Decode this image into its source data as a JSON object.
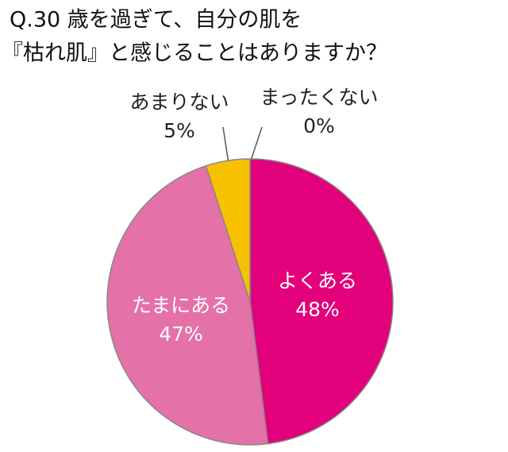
{
  "chart_data": {
    "type": "pie",
    "title": [
      "Q.30 歳を過ぎて、自分の肌を",
      "『枯れ肌』と感じることはありますか？"
    ],
    "categories": [
      "よくある",
      "たまにある",
      "あまりない",
      "まったくない"
    ],
    "values": [
      48,
      47,
      5,
      0
    ],
    "value_labels": [
      "48%",
      "47%",
      "5%",
      "0%"
    ],
    "colors": [
      "#e2007b",
      "#e471a8",
      "#f7c100",
      "#bbbbbb"
    ]
  }
}
